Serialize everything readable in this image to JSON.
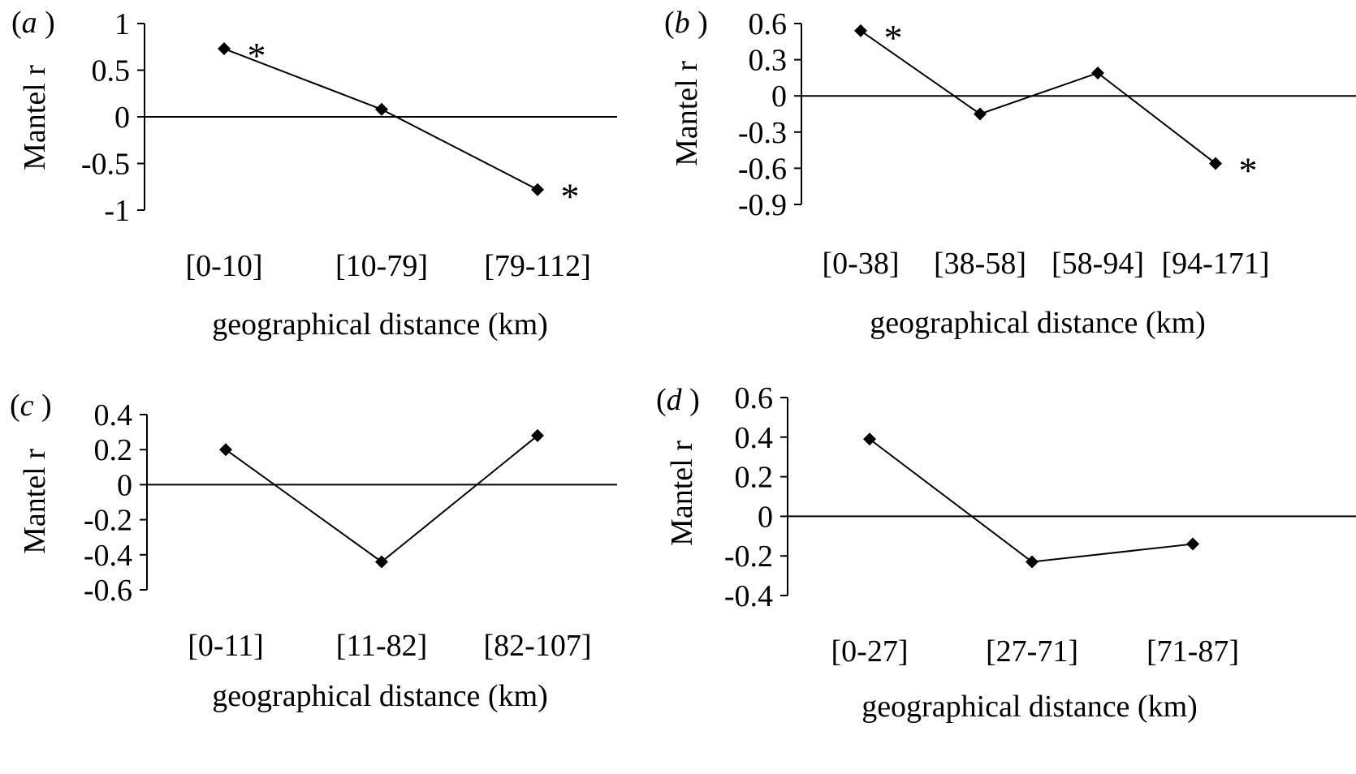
{
  "chart_data": [
    {
      "panel": "a",
      "type": "line",
      "xlabel": "geographical distance (km)",
      "ylabel": "Mantel r",
      "categories": [
        "[0-10]",
        "[10-79]",
        "[79-112]"
      ],
      "values": [
        0.73,
        0.08,
        -0.78
      ],
      "significant": [
        true,
        false,
        true
      ],
      "ylim": [
        -1,
        1
      ],
      "yticks": [
        1,
        0.5,
        0,
        -0.5,
        -1
      ],
      "ytick_labels": [
        "1",
        "0.5",
        "0",
        "-0.5",
        "-1"
      ]
    },
    {
      "panel": "b",
      "type": "line",
      "xlabel": "geographical distance (km)",
      "ylabel": "Mantel r",
      "categories": [
        "[0-38]",
        "[38-58]",
        "[58-94]",
        "[94-171]"
      ],
      "values": [
        0.54,
        -0.15,
        0.19,
        -0.56
      ],
      "significant": [
        true,
        false,
        false,
        true
      ],
      "ylim": [
        -0.9,
        0.6
      ],
      "yticks": [
        0.6,
        0.3,
        0,
        -0.3,
        -0.6,
        -0.9
      ],
      "ytick_labels": [
        "0.6",
        "0.3",
        "0",
        "-0.3",
        "-0.6",
        "-0.9"
      ]
    },
    {
      "panel": "c",
      "type": "line",
      "xlabel": "geographical distance (km)",
      "ylabel": "Mantel r",
      "categories": [
        "[0-11]",
        "[11-82]",
        "[82-107]"
      ],
      "values": [
        0.2,
        -0.44,
        0.28
      ],
      "significant": [
        false,
        false,
        false
      ],
      "ylim": [
        -0.6,
        0.4
      ],
      "yticks": [
        0.4,
        0.2,
        0,
        -0.2,
        -0.4,
        -0.6
      ],
      "ytick_labels": [
        "0.4",
        "0.2",
        "0",
        "-0.2",
        "-0.4",
        "-0.6"
      ]
    },
    {
      "panel": "d",
      "type": "line",
      "xlabel": "geographical distance (km)",
      "ylabel": "Mantel r",
      "categories": [
        "[0-27]",
        "[27-71]",
        "[71-87]"
      ],
      "values": [
        0.39,
        -0.23,
        -0.14
      ],
      "significant": [
        false,
        false,
        false
      ],
      "ylim": [
        -0.4,
        0.6
      ],
      "yticks": [
        0.6,
        0.4,
        0.2,
        0,
        -0.2,
        -0.4
      ],
      "ytick_labels": [
        "0.6",
        "0.4",
        "0.2",
        "0",
        "-0.2",
        "-0.4"
      ]
    }
  ],
  "significance_marker": "*"
}
